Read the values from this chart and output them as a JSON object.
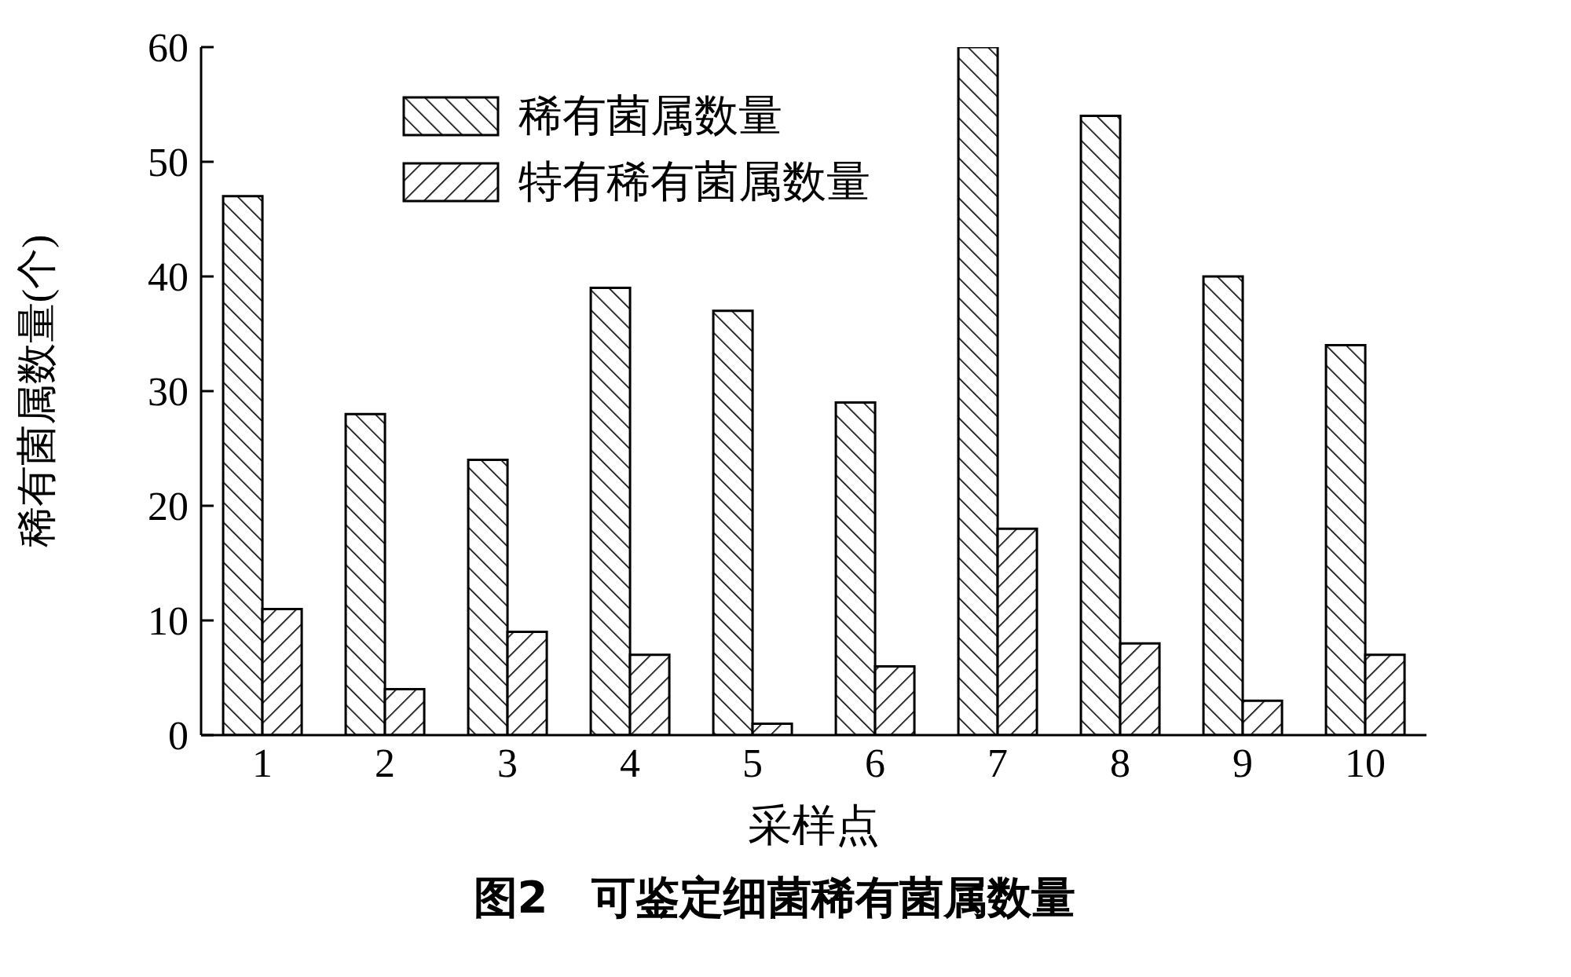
{
  "chart_data": {
    "type": "bar",
    "title": "图2　可鉴定细菌稀有菌属数量",
    "xlabel": "采样点",
    "ylabel": "稀有菌属数量(个)",
    "categories": [
      "1",
      "2",
      "3",
      "4",
      "5",
      "6",
      "7",
      "8",
      "9",
      "10"
    ],
    "series": [
      {
        "name": "稀有菌属数量",
        "color": "#000000",
        "values": [
          47,
          28,
          24,
          39,
          37,
          29,
          60,
          54,
          40,
          34
        ]
      },
      {
        "name": "特有稀有菌属数量",
        "color": "#000000",
        "values": [
          11,
          4,
          9,
          7,
          1,
          6,
          18,
          8,
          3,
          7
        ]
      }
    ],
    "ylim": [
      0,
      60
    ],
    "yticks": [
      0,
      10,
      20,
      30,
      40,
      50,
      60
    ],
    "grid": false,
    "legend": "top left"
  }
}
